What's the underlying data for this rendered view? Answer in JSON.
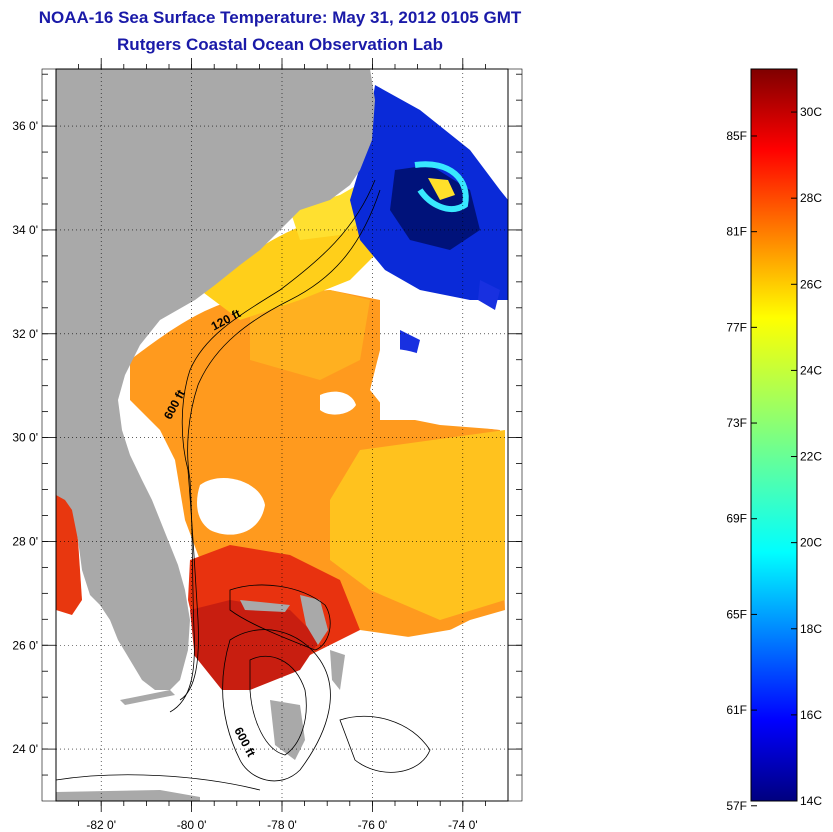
{
  "title": "NOAA-16 Sea Surface Temperature:  May 31, 2012 0105 GMT",
  "subtitle": "Rutgers Coastal Ocean Observation Lab",
  "map": {
    "lat_range": [
      23,
      37.1
    ],
    "lon_range": [
      -83.0,
      -73.0
    ],
    "grid": true,
    "lat_ticks": [
      {
        "value": 24,
        "label": "24 0'"
      },
      {
        "value": 26,
        "label": "26 0'"
      },
      {
        "value": 28,
        "label": "28 0'"
      },
      {
        "value": 30,
        "label": "30 0'"
      },
      {
        "value": 32,
        "label": "32 0'"
      },
      {
        "value": 34,
        "label": "34 0'"
      },
      {
        "value": 36,
        "label": "36 0'"
      }
    ],
    "lon_ticks": [
      {
        "value": -82,
        "label": "-82 0'"
      },
      {
        "value": -80,
        "label": "-80 0'"
      },
      {
        "value": -78,
        "label": "-78 0'"
      },
      {
        "value": -76,
        "label": "-76 0'"
      },
      {
        "value": -74,
        "label": "-74 0'"
      }
    ],
    "contour_labels": [
      {
        "text": "120 ft",
        "lon": -79.2,
        "lat": 32.2
      },
      {
        "text": "600 ft",
        "lon": -80.3,
        "lat": 30.6
      },
      {
        "text": "600 ft",
        "lon": -78.9,
        "lat": 24.1
      }
    ],
    "colors": {
      "land": "#a9a9a9",
      "cloud": "#ffffff"
    }
  },
  "colorbar": {
    "min_c": 14,
    "max_c": 31,
    "celsius_ticks": [
      {
        "value": 14,
        "label": "14C"
      },
      {
        "value": 16,
        "label": "16C"
      },
      {
        "value": 18,
        "label": "18C"
      },
      {
        "value": 20,
        "label": "20C"
      },
      {
        "value": 22,
        "label": "22C"
      },
      {
        "value": 24,
        "label": "24C"
      },
      {
        "value": 26,
        "label": "26C"
      },
      {
        "value": 28,
        "label": "28C"
      },
      {
        "value": 30,
        "label": "30C"
      }
    ],
    "fahrenheit_ticks": [
      {
        "value": 57,
        "label": "57F"
      },
      {
        "value": 61,
        "label": "61F"
      },
      {
        "value": 65,
        "label": "65F"
      },
      {
        "value": 69,
        "label": "69F"
      },
      {
        "value": 73,
        "label": "73F"
      },
      {
        "value": 77,
        "label": "77F"
      },
      {
        "value": 81,
        "label": "81F"
      },
      {
        "value": 85,
        "label": "85F"
      }
    ],
    "colormap": "jet"
  }
}
